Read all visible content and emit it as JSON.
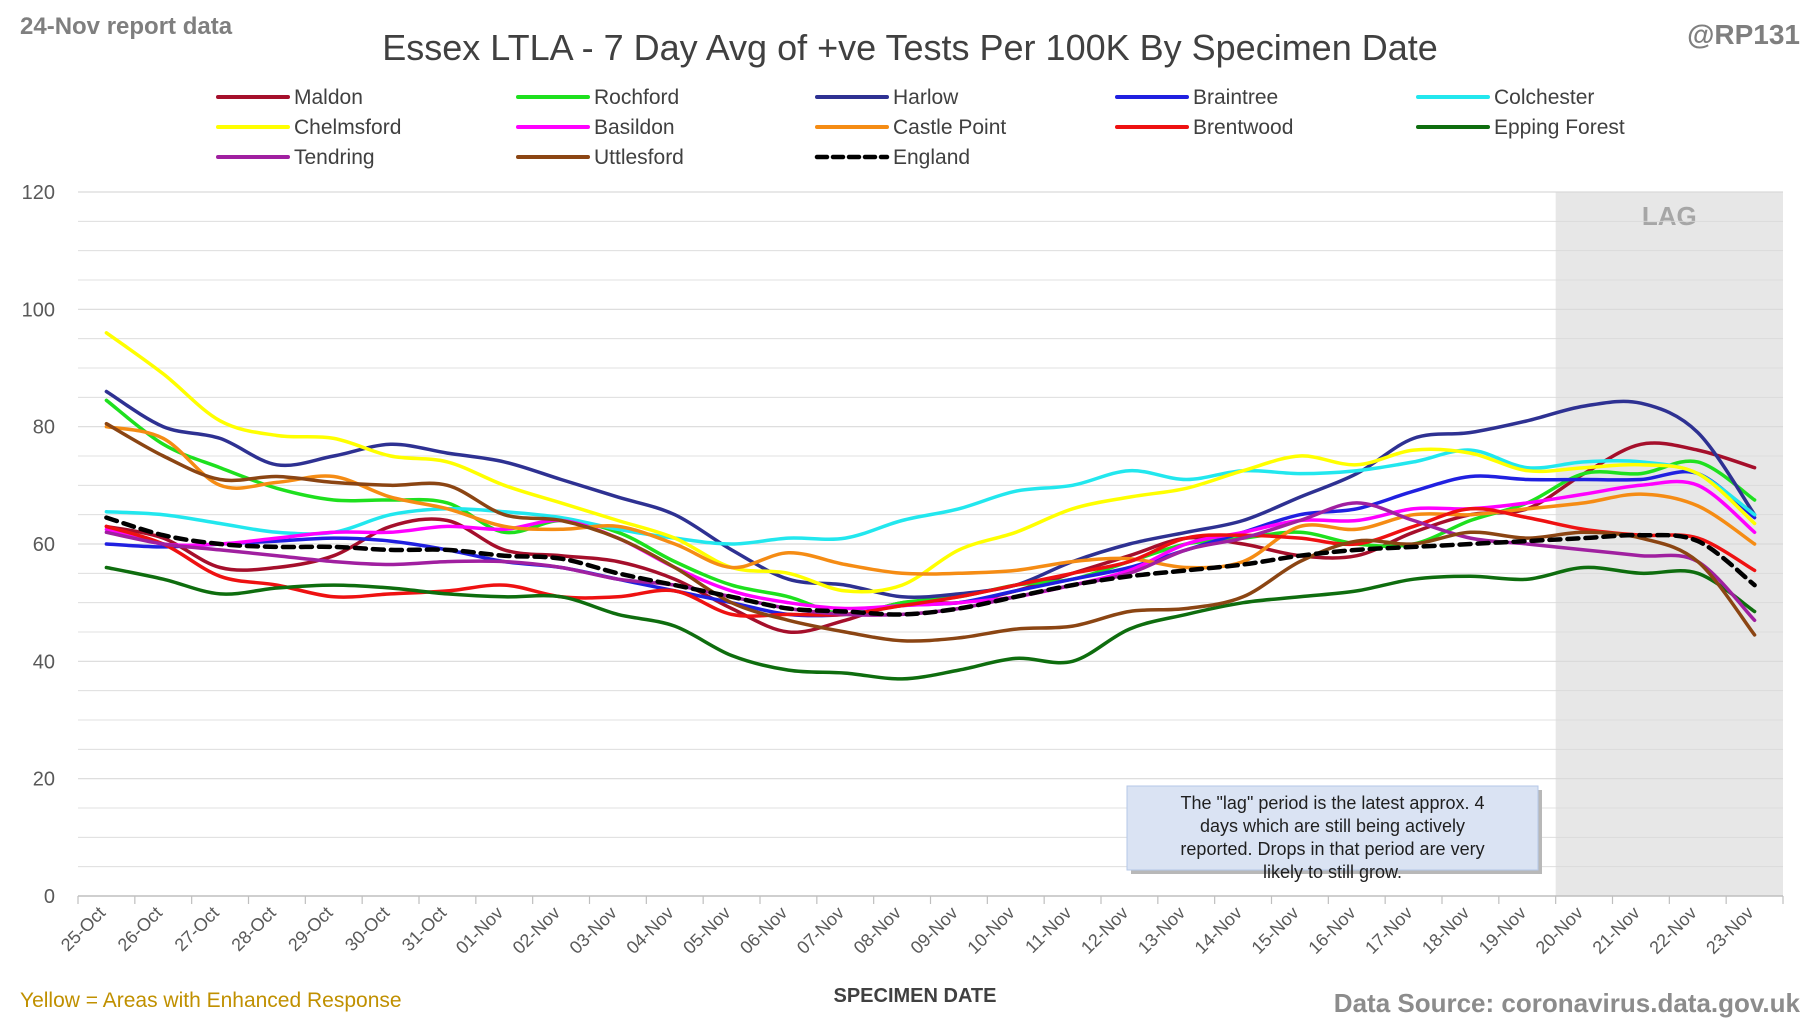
{
  "header": {
    "report_date": "24-Nov report data",
    "handle": "@RP131"
  },
  "footer": {
    "enhanced_note": "Yellow = Areas with Enhanced Response",
    "source": "Data Source: coronavirus.data.gov.uk"
  },
  "colors": {
    "lag_shade": "#e7e7e7",
    "gridline": "#d9d9d9",
    "note_box": "#dae3f3"
  },
  "chart_data": {
    "type": "line",
    "title": "Essex LTLA - 7 Day Avg of +ve Tests Per 100K By Specimen Date",
    "xlabel": "SPECIMEN DATE",
    "ylabel": "",
    "ylim": [
      0,
      120
    ],
    "yticks": [
      0,
      20,
      40,
      60,
      80,
      100,
      120
    ],
    "grid": "horizontal (every 5)",
    "legend_position": "top",
    "categories": [
      "25-Oct",
      "26-Oct",
      "27-Oct",
      "28-Oct",
      "29-Oct",
      "30-Oct",
      "31-Oct",
      "01-Nov",
      "02-Nov",
      "03-Nov",
      "04-Nov",
      "05-Nov",
      "06-Nov",
      "07-Nov",
      "08-Nov",
      "09-Nov",
      "10-Nov",
      "11-Nov",
      "12-Nov",
      "13-Nov",
      "14-Nov",
      "15-Nov",
      "16-Nov",
      "17-Nov",
      "18-Nov",
      "19-Nov",
      "20-Nov",
      "21-Nov",
      "22-Nov",
      "23-Nov"
    ],
    "lag_region": {
      "from": "20-Nov",
      "to": "23-Nov",
      "label": "LAG"
    },
    "annotation": "The \"lag\" period is the latest approx. 4 days which are still being actively reported. Drops in that period are very likely to still grow.",
    "series": [
      {
        "name": "Maldon",
        "color": "#a50f2b",
        "dashed": false,
        "values": [
          63,
          61,
          56,
          56,
          58,
          63,
          64,
          59,
          58,
          57,
          54,
          49,
          45,
          47,
          50,
          50,
          52,
          55,
          58,
          61,
          60,
          58,
          58,
          62,
          65,
          66,
          72,
          77,
          76,
          73
        ]
      },
      {
        "name": "Rochford",
        "color": "#1ee01e",
        "dashed": false,
        "values": [
          84.5,
          77,
          73,
          69.5,
          67.5,
          67.5,
          67,
          62,
          64,
          62,
          57,
          53,
          51,
          48,
          50,
          51,
          53,
          54,
          57,
          60,
          61,
          62,
          60,
          60,
          64,
          67,
          72,
          72,
          74,
          67.5
        ]
      },
      {
        "name": "Harlow",
        "color": "#2e3192",
        "dashed": false,
        "values": [
          86,
          80,
          78,
          73.5,
          75,
          77,
          75.5,
          74,
          71,
          68,
          65,
          59,
          54,
          53,
          51,
          51.5,
          53,
          57,
          60,
          62,
          64,
          68,
          72,
          78,
          79,
          81,
          83.5,
          84,
          79,
          65
        ]
      },
      {
        "name": "Braintree",
        "color": "#2020e0",
        "dashed": false,
        "values": [
          60,
          59.5,
          60,
          60.5,
          61,
          60.5,
          59,
          57,
          56,
          54,
          52,
          50,
          48,
          48,
          49.5,
          50,
          52,
          54,
          56,
          59,
          62,
          65,
          66,
          69,
          71.5,
          71,
          71,
          71,
          72,
          64.5
        ]
      },
      {
        "name": "Colchester",
        "color": "#22e7ee",
        "dashed": false,
        "values": [
          65.5,
          65,
          63.5,
          62,
          62,
          65,
          66,
          65.5,
          64.5,
          62.5,
          61,
          60,
          61,
          61,
          64,
          66,
          69,
          70,
          72.5,
          71,
          72.5,
          72,
          72.5,
          74,
          76,
          73,
          74,
          74,
          72,
          65
        ]
      },
      {
        "name": "Chelmsford",
        "color": "#ffff00",
        "dashed": false,
        "values": [
          96,
          89,
          81,
          78.5,
          78,
          75,
          74,
          70,
          67,
          64,
          61,
          56,
          55,
          52,
          53,
          59,
          62,
          66,
          68,
          69.5,
          72.5,
          75,
          73.5,
          76,
          75.5,
          72.5,
          73,
          73.5,
          72,
          63.5
        ]
      },
      {
        "name": "Basildon",
        "color": "#ff00ff",
        "dashed": false,
        "values": [
          62.5,
          60,
          60,
          61,
          62,
          62,
          63,
          62.5,
          64,
          61,
          56,
          52,
          50,
          49,
          49.5,
          50,
          51,
          53,
          55.5,
          60,
          62,
          64,
          64,
          66,
          66,
          67,
          68.5,
          70,
          70,
          62
        ]
      },
      {
        "name": "Castle Point",
        "color": "#f58c14",
        "dashed": false,
        "values": [
          80,
          78,
          70,
          70.5,
          71.5,
          68,
          66,
          63,
          62.5,
          63,
          60,
          56,
          58.5,
          56.5,
          55,
          55,
          55.5,
          57,
          57.5,
          56,
          57,
          63,
          62.5,
          65,
          65,
          66,
          67,
          68.5,
          66.5,
          60
        ]
      },
      {
        "name": "Brentwood",
        "color": "#ee1111",
        "dashed": false,
        "values": [
          63,
          60,
          54.5,
          53,
          51,
          51.5,
          52,
          53,
          51,
          51,
          52,
          48,
          48,
          48,
          49.5,
          51,
          53,
          55,
          57,
          61,
          61.5,
          61,
          60,
          63,
          66,
          64.5,
          62.5,
          61.5,
          61,
          55.5
        ]
      },
      {
        "name": "Epping Forest",
        "color": "#0e6d0e",
        "dashed": false,
        "values": [
          56,
          54,
          51.5,
          52.5,
          53,
          52.5,
          51.5,
          51,
          51,
          48,
          46,
          41,
          38.5,
          38,
          37,
          38.5,
          40.5,
          40,
          45.5,
          48,
          50,
          51,
          52,
          54,
          54.5,
          54,
          56,
          55,
          55,
          48.5
        ]
      },
      {
        "name": "Tendring",
        "color": "#a020a0",
        "dashed": false,
        "values": [
          62,
          60,
          59,
          58,
          57,
          56.5,
          57,
          57,
          56,
          54,
          53,
          51,
          49,
          48,
          48,
          49,
          51,
          53,
          55,
          59,
          61,
          64,
          67,
          64,
          61,
          60,
          59,
          58,
          57,
          47
        ]
      },
      {
        "name": "Uttlesford",
        "color": "#8b4513",
        "dashed": false,
        "values": [
          80.5,
          75,
          71,
          71.5,
          70.5,
          70,
          70,
          65,
          64,
          61,
          56,
          50,
          47,
          45,
          43.5,
          44,
          45.5,
          46,
          48.5,
          49,
          51,
          57,
          60.5,
          60,
          62,
          61,
          62,
          61,
          57,
          44.5
        ]
      },
      {
        "name": "England",
        "color": "#000000",
        "dashed": true,
        "values": [
          64.5,
          61.5,
          60,
          59.5,
          59.5,
          59,
          59,
          58,
          57.5,
          55,
          53,
          51,
          49,
          48.5,
          48,
          49,
          51,
          53,
          54.5,
          55.5,
          56.5,
          58,
          59,
          59.5,
          60,
          60.5,
          61,
          61.5,
          60.5,
          53
        ]
      }
    ]
  }
}
